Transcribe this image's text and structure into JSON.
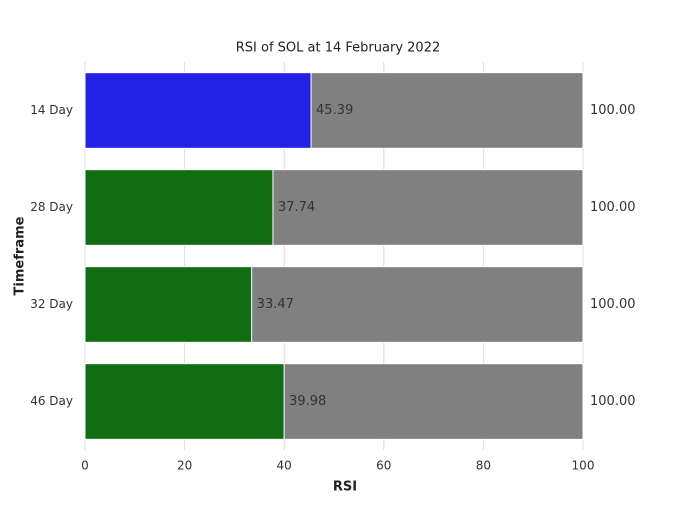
{
  "chart_data": {
    "type": "bar",
    "orientation": "horizontal",
    "title": "RSI of SOL at 14 February 2022",
    "x_label": "RSI",
    "y_label": "Timeframe",
    "categories": [
      "14 Day",
      "28 Day",
      "32 Day",
      "46 Day"
    ],
    "series": [
      {
        "color": "#808080",
        "values": [
          100,
          100,
          100,
          100
        ],
        "value_labels": [
          "100.00",
          "100.00",
          "100.00",
          "100.00"
        ]
      },
      {
        "colors": [
          "#2222e6",
          "#116d11",
          "#116d11",
          "#116d11"
        ],
        "values": [
          45.39,
          37.74,
          33.47,
          39.98
        ]
      }
    ],
    "xlim": [
      0,
      100
    ],
    "xticks": [
      0,
      20,
      40,
      60,
      80,
      100
    ],
    "grid": true
  }
}
